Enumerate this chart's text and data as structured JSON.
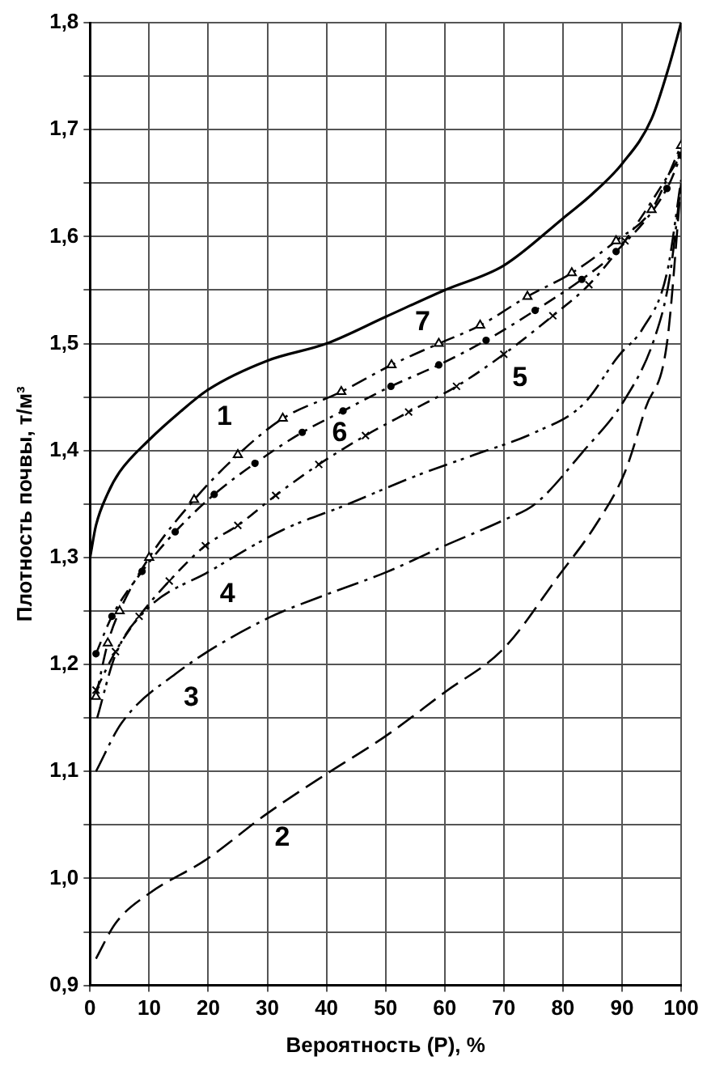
{
  "chart_data": {
    "type": "line",
    "xlabel": "Вероятность (Р), %",
    "ylabel": "Плотность почвы, т/м³",
    "xlim": [
      0,
      100
    ],
    "xticks": [
      0,
      10,
      20,
      30,
      40,
      50,
      60,
      70,
      80,
      90,
      100
    ],
    "ylim": [
      0.9,
      1.8
    ],
    "yticks": [
      {
        "value": 0.9,
        "label": "0,9"
      },
      {
        "value": 0.95,
        "label": null
      },
      {
        "value": 1.0,
        "label": "1,0"
      },
      {
        "value": 1.05,
        "label": null
      },
      {
        "value": 1.1,
        "label": "1,1"
      },
      {
        "value": 1.15,
        "label": null
      },
      {
        "value": 1.2,
        "label": "1,2"
      },
      {
        "value": 1.25,
        "label": null
      },
      {
        "value": 1.3,
        "label": "1,3"
      },
      {
        "value": 1.35,
        "label": null
      },
      {
        "value": 1.4,
        "label": "1,4"
      },
      {
        "value": 1.45,
        "label": null
      },
      {
        "value": 1.5,
        "label": "1,5"
      },
      {
        "value": 1.55,
        "label": null
      },
      {
        "value": 1.6,
        "label": "1,6"
      },
      {
        "value": 1.65,
        "label": null
      },
      {
        "value": 1.7,
        "label": "1,7"
      },
      {
        "value": 1.75,
        "label": null
      },
      {
        "value": 1.8,
        "label": "1,8"
      }
    ],
    "grid": true,
    "legend": false,
    "series": [
      {
        "name": "1",
        "color": "#000000",
        "line_style": "solid",
        "marker": "none",
        "x": [
          0,
          1,
          3,
          5,
          10,
          15,
          20,
          30,
          40,
          50,
          60,
          70,
          80,
          85,
          90,
          95,
          98,
          100
        ],
        "values": [
          1.3,
          1.33,
          1.36,
          1.38,
          1.41,
          1.435,
          1.457,
          1.484,
          1.5,
          1.525,
          1.55,
          1.573,
          1.617,
          1.64,
          1.668,
          1.71,
          1.76,
          1.8
        ]
      },
      {
        "name": "2",
        "color": "#000000",
        "line_style": "dashed",
        "marker": "none",
        "x": [
          1,
          4.3,
          10,
          19.5,
          29.8,
          39.8,
          50,
          60,
          70,
          79.3,
          85.5,
          90.5,
          94,
          97.6,
          100
        ],
        "values": [
          0.925,
          0.958,
          0.986,
          1.017,
          1.06,
          1.097,
          1.133,
          1.174,
          1.215,
          1.283,
          1.33,
          1.38,
          1.44,
          1.5,
          1.65
        ]
      },
      {
        "name": "3",
        "color": "#000000",
        "line_style": "dashed",
        "marker": "none",
        "x": [
          1,
          5.3,
          14.4,
          29.6,
          39.8,
          50,
          60,
          70,
          75.3,
          83.4,
          90.5,
          95.5,
          98,
          100
        ],
        "values": [
          1.1,
          1.145,
          1.191,
          1.242,
          1.265,
          1.286,
          1.311,
          1.335,
          1.35,
          1.399,
          1.448,
          1.505,
          1.56,
          1.65
        ]
      },
      {
        "name": "4",
        "color": "#000000",
        "line_style": "dashed",
        "marker": "none",
        "x": [
          1.2,
          4.3,
          9.3,
          20.5,
          32.7,
          42.8,
          55,
          65,
          75.3,
          83.4,
          89.5,
          93.5,
          97.6,
          100
        ],
        "values": [
          1.15,
          1.209,
          1.25,
          1.288,
          1.326,
          1.348,
          1.376,
          1.396,
          1.417,
          1.443,
          1.489,
          1.514,
          1.566,
          1.653
        ]
      },
      {
        "name": "5",
        "color": "#000000",
        "line_style": "dashed",
        "marker": "cross",
        "x": [
          1,
          4.3,
          8.3,
          13.4,
          19.5,
          25,
          31.4,
          38.7,
          46.6,
          53.9,
          62,
          70,
          78.3,
          84.4,
          90.5,
          100
        ],
        "values": [
          1.176,
          1.212,
          1.245,
          1.278,
          1.311,
          1.33,
          1.358,
          1.387,
          1.414,
          1.436,
          1.46,
          1.49,
          1.526,
          1.555,
          1.596,
          1.676
        ]
      },
      {
        "name": "6",
        "color": "#000000",
        "line_style": "dashed",
        "marker": "circle",
        "x": [
          1,
          3.7,
          8.8,
          14.4,
          21,
          27.9,
          35.9,
          42.8,
          50.9,
          59,
          67,
          75.3,
          83.2,
          89,
          97.6,
          100
        ],
        "values": [
          1.21,
          1.245,
          1.287,
          1.324,
          1.359,
          1.388,
          1.417,
          1.437,
          1.46,
          1.48,
          1.503,
          1.531,
          1.56,
          1.586,
          1.645,
          1.676
        ]
      },
      {
        "name": "7",
        "color": "#000000",
        "line_style": "dashed",
        "marker": "triangle",
        "x": [
          1,
          3,
          5,
          10,
          17.6,
          25,
          32.6,
          42.5,
          51,
          59,
          66,
          74,
          81.5,
          89,
          95,
          100
        ],
        "values": [
          1.17,
          1.22,
          1.25,
          1.3,
          1.354,
          1.396,
          1.43,
          1.455,
          1.48,
          1.5,
          1.517,
          1.544,
          1.566,
          1.596,
          1.625,
          1.685
        ]
      }
    ]
  }
}
